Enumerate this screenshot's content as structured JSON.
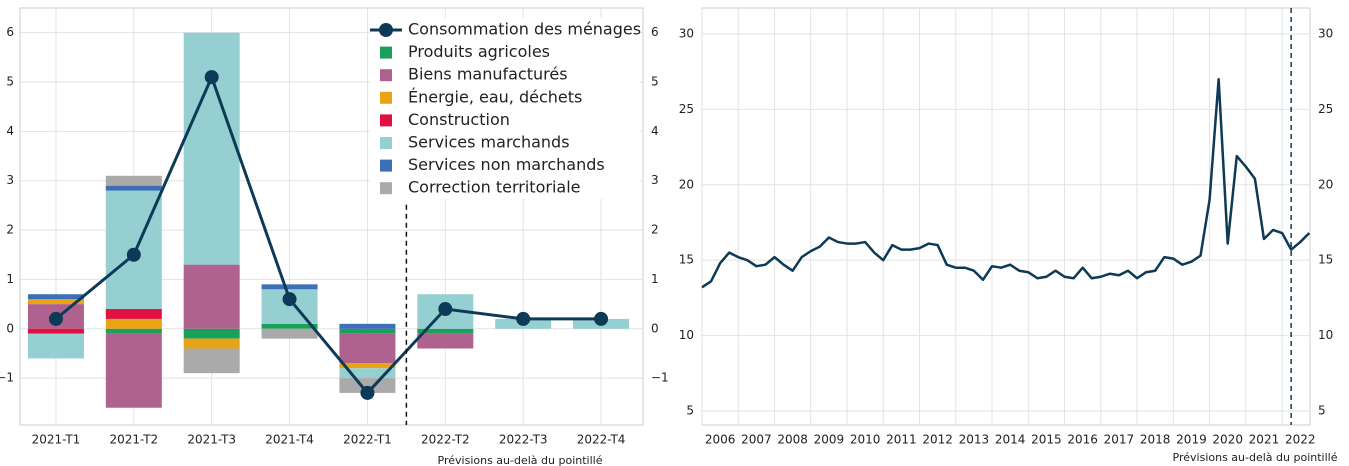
{
  "chart_data": [
    {
      "type": "bar",
      "stacked": true,
      "categories": [
        "2021-T1",
        "2021-T2",
        "2021-T3",
        "2021-T4",
        "2022-T1",
        "2022-T2",
        "2022-T3",
        "2022-T4"
      ],
      "series": [
        {
          "name": "Consommation des ménages",
          "type": "line",
          "color": "#0d3a56",
          "values": [
            0.2,
            1.5,
            5.1,
            0.6,
            -1.3,
            0.4,
            0.2,
            0.2
          ]
        },
        {
          "name": "Produits agricoles",
          "color": "#1aa05a",
          "values": [
            null,
            -0.1,
            -0.2,
            0.1,
            -0.1,
            -0.1,
            null,
            null
          ]
        },
        {
          "name": "Biens manufacturés",
          "color": "#b0628f",
          "values": [
            0.5,
            -1.5,
            1.3,
            null,
            -0.6,
            -0.3,
            null,
            null
          ]
        },
        {
          "name": "Énergie, eau, déchets",
          "color": "#e8a317",
          "values": [
            0.1,
            0.2,
            -0.2,
            null,
            -0.1,
            null,
            null,
            null
          ]
        },
        {
          "name": "Construction",
          "color": "#e01040",
          "values": [
            -0.1,
            0.2,
            null,
            null,
            null,
            null,
            null,
            null
          ]
        },
        {
          "name": "Services marchands",
          "color": "#96cfd1",
          "values": [
            -0.5,
            2.4,
            4.7,
            0.7,
            -0.2,
            0.7,
            0.2,
            0.2
          ]
        },
        {
          "name": "Services non marchands",
          "color": "#3c6fb5",
          "values": [
            0.1,
            0.1,
            null,
            0.1,
            0.1,
            null,
            null,
            null
          ]
        },
        {
          "name": "Correction territoriale",
          "color": "#aaaaaa",
          "values": [
            null,
            0.2,
            -0.5,
            -0.2,
            -0.3,
            null,
            null,
            null
          ]
        }
      ],
      "ylim": [
        -1.95,
        6.5
      ],
      "yticks": [
        {
          "value": -1,
          "label": "−1"
        },
        0,
        1,
        2,
        3,
        4,
        5,
        6
      ],
      "grid": true,
      "legend": "upper right",
      "forecast_x": 4.5,
      "annotation": "Prévisions au-delà du pointillé"
    },
    {
      "type": "line",
      "x": [
        2006,
        2006.25,
        2006.5,
        2006.75,
        2007,
        2007.25,
        2007.5,
        2007.75,
        2008,
        2008.25,
        2008.5,
        2008.75,
        2009,
        2009.25,
        2009.5,
        2009.75,
        2010,
        2010.25,
        2010.5,
        2010.75,
        2011,
        2011.25,
        2011.5,
        2011.75,
        2012,
        2012.25,
        2012.5,
        2012.75,
        2013,
        2013.25,
        2013.5,
        2013.75,
        2014,
        2014.25,
        2014.5,
        2014.75,
        2015,
        2015.25,
        2015.5,
        2015.75,
        2016,
        2016.25,
        2016.5,
        2016.75,
        2017,
        2017.25,
        2017.5,
        2017.75,
        2018,
        2018.25,
        2018.5,
        2018.75,
        2019,
        2019.25,
        2019.5,
        2019.75,
        2020,
        2020.25,
        2020.5,
        2020.75,
        2021,
        2021.25,
        2021.5,
        2021.75,
        2022,
        2022.25,
        2022.5,
        2022.75
      ],
      "series": [
        {
          "name": null,
          "color": "#0d3a56",
          "values": [
            13.2,
            13.6,
            14.8,
            15.5,
            15.2,
            15.0,
            14.6,
            14.7,
            15.2,
            14.7,
            14.3,
            15.2,
            15.6,
            15.9,
            16.5,
            16.2,
            16.1,
            16.1,
            16.2,
            15.5,
            15.0,
            16.0,
            15.7,
            15.7,
            15.8,
            16.1,
            16.0,
            14.7,
            14.5,
            14.5,
            14.3,
            13.7,
            14.6,
            14.5,
            14.7,
            14.3,
            14.2,
            13.8,
            13.9,
            14.3,
            13.9,
            13.8,
            14.5,
            13.8,
            13.9,
            14.1,
            14.0,
            14.3,
            13.8,
            14.2,
            14.3,
            15.2,
            15.1,
            14.7,
            14.9,
            15.3,
            19.0,
            27.0,
            16.1,
            21.9,
            21.2,
            20.4,
            16.4,
            17.0,
            16.8,
            15.7,
            16.2,
            16.8
          ]
        }
      ],
      "xlim": [
        2006,
        2022.77
      ],
      "xticks": [
        2006,
        2007,
        2008,
        2009,
        2010,
        2011,
        2012,
        2013,
        2014,
        2015,
        2016,
        2017,
        2018,
        2019,
        2020,
        2021,
        2022
      ],
      "ylim": [
        4.07,
        31.72
      ],
      "yticks": [
        5,
        10,
        15,
        20,
        25,
        30
      ],
      "grid": true,
      "forecast_x": 2022.25,
      "annotation": "Prévisions au-delà du pointillé"
    }
  ]
}
